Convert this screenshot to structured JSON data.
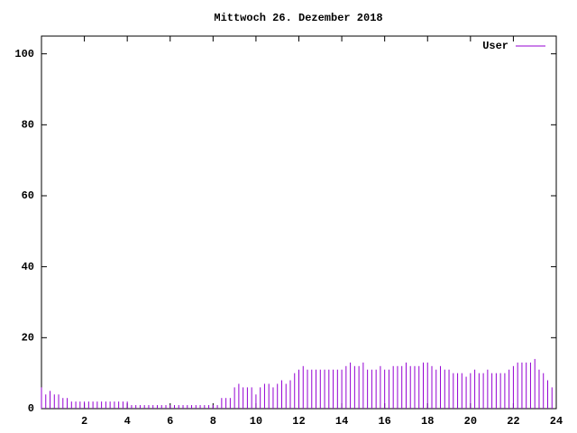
{
  "chart_data": {
    "type": "impulse",
    "title": "Mittwoch 26. Dezember 2018",
    "x": [
      0,
      0.2,
      0.4,
      0.6,
      0.8,
      1,
      1.2,
      1.4,
      1.6,
      1.8,
      2,
      2.2,
      2.4,
      2.6,
      2.8,
      3,
      3.2,
      3.4,
      3.6,
      3.8,
      4,
      4.2,
      4.4,
      4.6,
      4.8,
      5,
      5.2,
      5.4,
      5.6,
      5.8,
      6,
      6.2,
      6.4,
      6.6,
      6.8,
      7,
      7.2,
      7.4,
      7.6,
      7.8,
      8,
      8.2,
      8.4,
      8.6,
      8.8,
      9,
      9.2,
      9.4,
      9.6,
      9.8,
      10,
      10.2,
      10.4,
      10.6,
      10.8,
      11,
      11.2,
      11.4,
      11.6,
      11.8,
      12,
      12.2,
      12.4,
      12.6,
      12.8,
      13,
      13.2,
      13.4,
      13.6,
      13.8,
      14,
      14.2,
      14.4,
      14.6,
      14.8,
      15,
      15.2,
      15.4,
      15.6,
      15.8,
      16,
      16.2,
      16.4,
      16.6,
      16.8,
      17,
      17.2,
      17.4,
      17.6,
      17.8,
      18,
      18.2,
      18.4,
      18.6,
      18.8,
      19,
      19.2,
      19.4,
      19.6,
      19.8,
      20,
      20.2,
      20.4,
      20.6,
      20.8,
      21,
      21.2,
      21.4,
      21.6,
      21.8,
      22,
      22.2,
      22.4,
      22.6,
      22.8,
      23,
      23.2,
      23.4,
      23.6,
      23.8
    ],
    "series": [
      {
        "name": "User",
        "color": "#9400d3",
        "values": [
          6,
          4,
          5,
          4,
          4,
          3,
          3,
          2,
          2,
          2,
          2,
          2,
          2,
          2,
          2,
          2,
          2,
          2,
          2,
          2,
          2,
          1,
          1,
          1,
          1,
          1,
          1,
          1,
          1,
          1,
          1,
          1,
          1,
          1,
          1,
          1,
          1,
          1,
          1,
          1,
          1,
          1,
          3,
          3,
          3,
          6,
          7,
          6,
          6,
          6,
          4,
          6,
          7,
          7,
          6,
          7,
          8,
          7,
          8,
          10,
          11,
          12,
          11,
          11,
          11,
          11,
          11,
          11,
          11,
          11,
          11,
          12,
          13,
          12,
          12,
          13,
          11,
          11,
          11,
          12,
          11,
          11,
          12,
          12,
          12,
          13,
          12,
          12,
          12,
          13,
          13,
          12,
          11,
          12,
          11,
          11,
          10,
          10,
          10,
          9,
          10,
          11,
          10,
          10,
          11,
          10,
          10,
          10,
          10,
          11,
          12,
          13,
          13,
          13,
          13,
          14,
          11,
          10,
          8,
          6
        ]
      }
    ],
    "xlim": [
      0,
      24
    ],
    "xticks": [
      2,
      4,
      6,
      8,
      10,
      12,
      14,
      16,
      18,
      20,
      22,
      24
    ],
    "ylim": [
      0,
      105
    ],
    "yticks": [
      0,
      20,
      40,
      60,
      80,
      100
    ],
    "legend": "top-right"
  }
}
